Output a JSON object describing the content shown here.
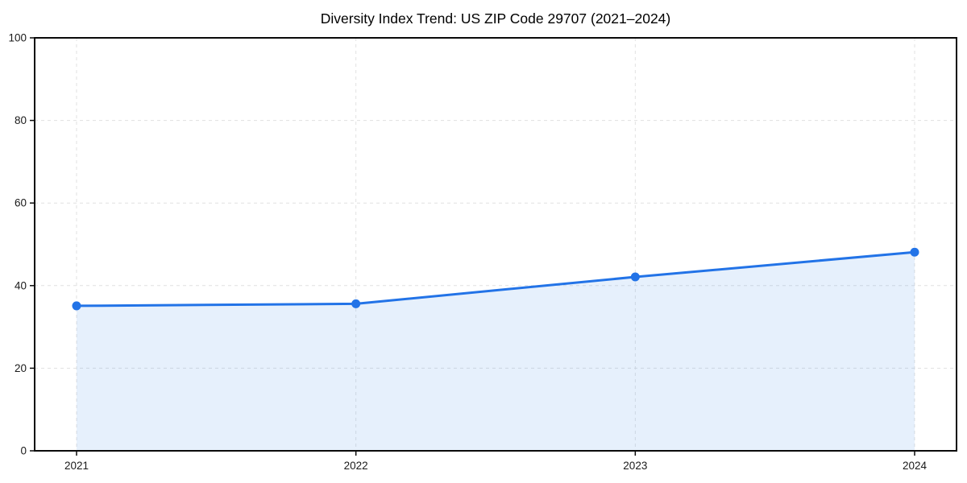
{
  "figure": {
    "background": "#ffffff"
  },
  "chart_data": {
    "type": "line",
    "title": "Diversity Index Trend: US ZIP Code 29707 (2021–2024)",
    "x": [
      2021,
      2022,
      2023,
      2024
    ],
    "x_tick_labels": [
      "2021",
      "2022",
      "2023",
      "2024"
    ],
    "series": [
      {
        "name": "Diversity Index",
        "values": [
          35.1,
          35.6,
          42.1,
          48.1
        ]
      }
    ],
    "y_ticks": [
      0,
      20,
      40,
      60,
      80,
      100
    ],
    "ylim": [
      0,
      100
    ],
    "xlim": [
      2020.85,
      2024.15
    ],
    "xlabel": "",
    "ylabel": "",
    "legend": "none",
    "grid": {
      "horizontal": true,
      "vertical": true,
      "style": "dashed"
    },
    "area_fill": true,
    "markers": true,
    "colors": {
      "line": "#2273e7",
      "marker": "#2273e7",
      "fill": "#1a73e8",
      "fill_opacity": 0.11,
      "grid": "#e1e1e1",
      "spine": "#0a0a0a",
      "tick": "#0a0a0a",
      "tick_label": "#1a1a1a",
      "title": "#000000",
      "background": "#ffffff"
    }
  }
}
